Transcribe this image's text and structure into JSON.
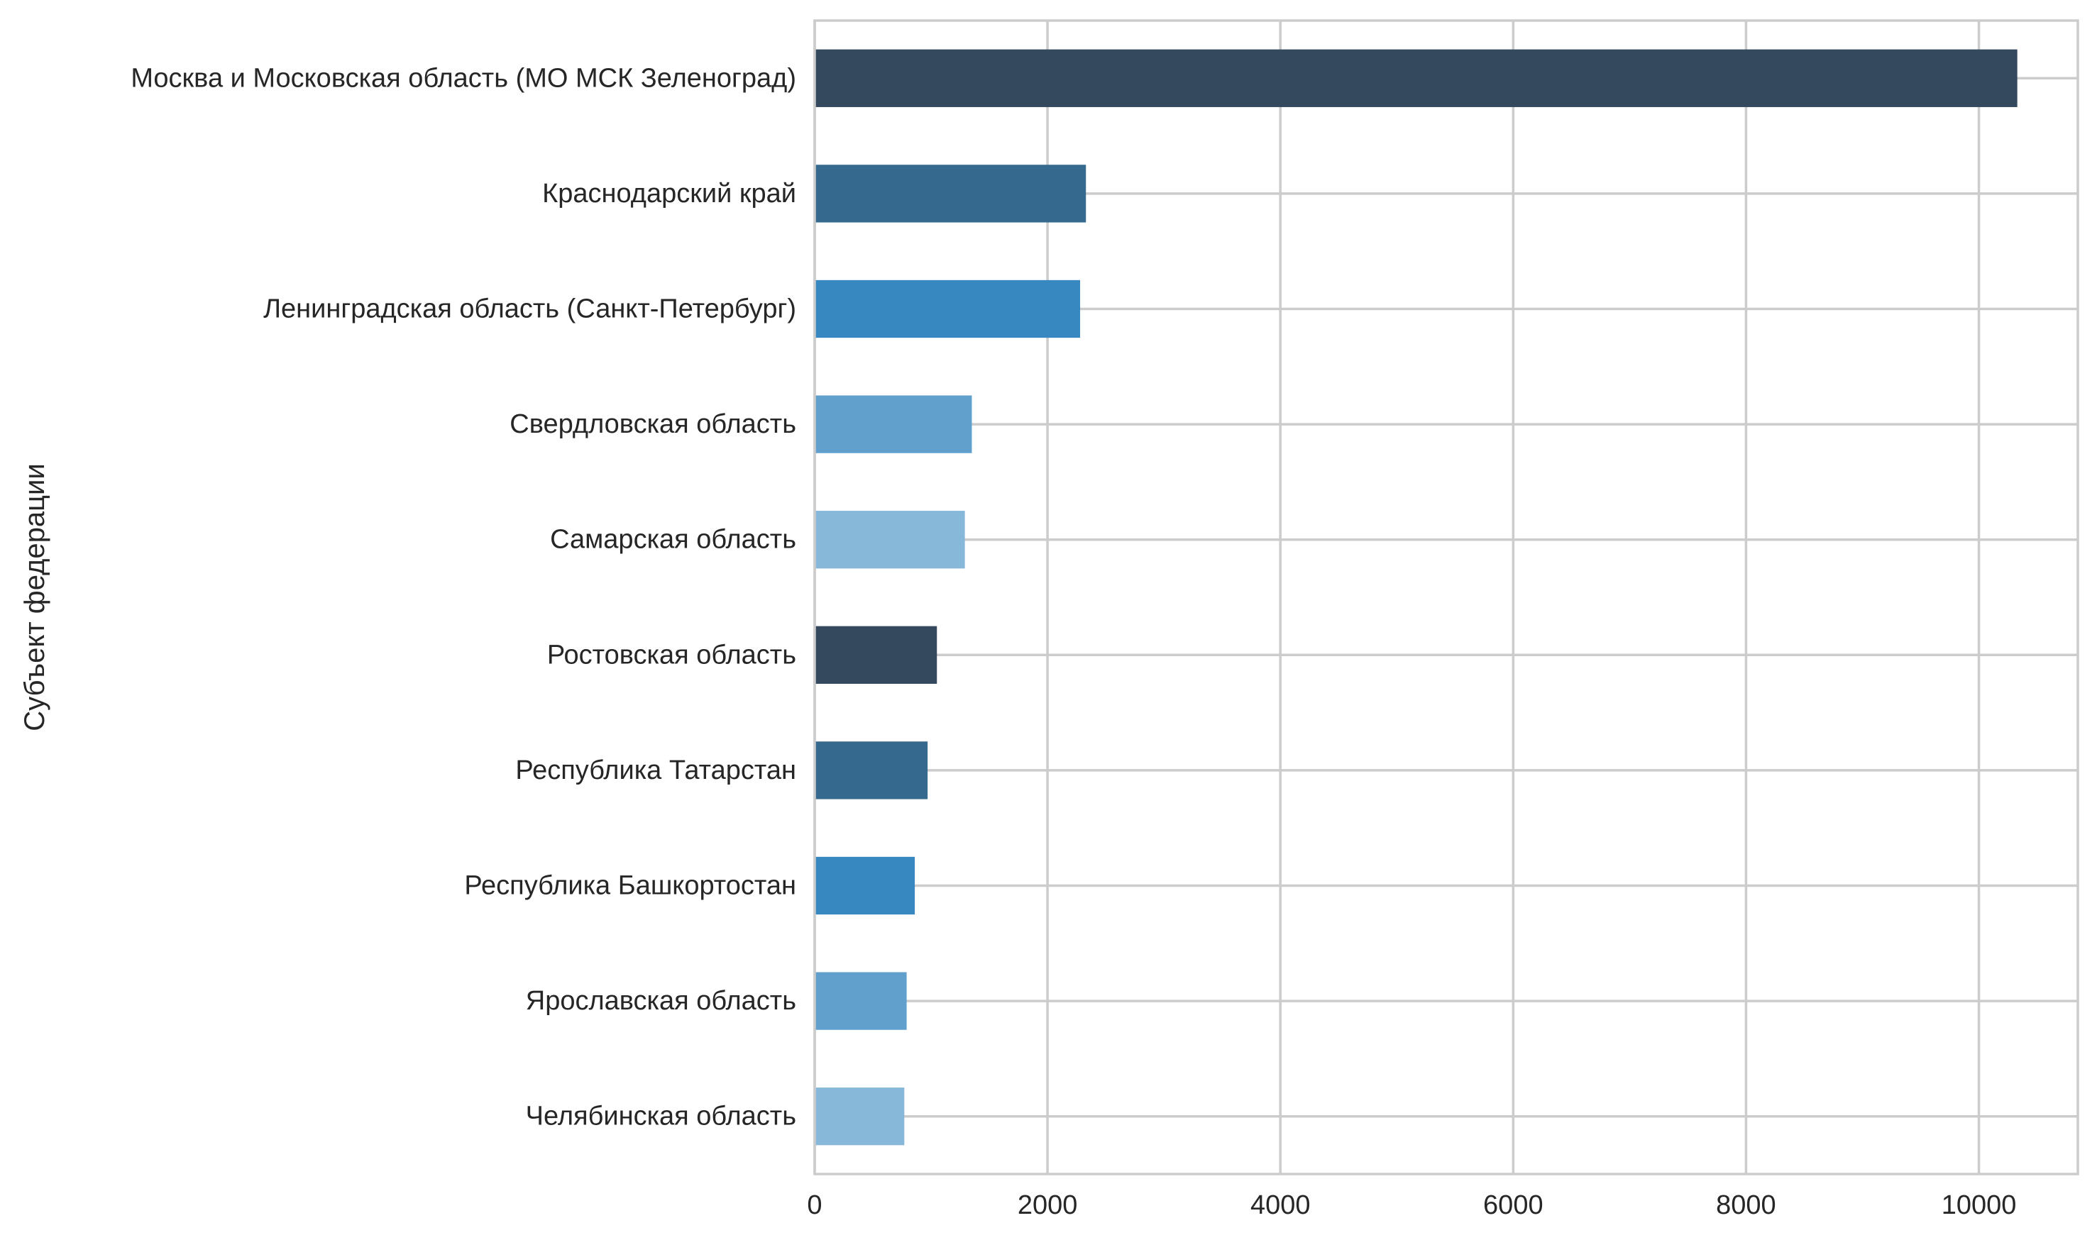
{
  "chart_data": {
    "type": "bar",
    "orientation": "horizontal",
    "ylabel": "Субъект федерации",
    "xlabel": "",
    "xlim": [
      0,
      10850
    ],
    "xticks": [
      0,
      2000,
      4000,
      6000,
      8000,
      10000
    ],
    "grid": true,
    "categories": [
      "Москва и Московская область (МО МСК Зеленоград)",
      "Краснодарский край",
      "Ленинградская область (Санкт-Петербург)",
      "Свердловская область",
      "Самарская область",
      "Ростовская область",
      "Республика Татарстан",
      "Республика Башкортостан",
      "Ярославская область",
      "Челябинская область"
    ],
    "values": [
      10330,
      2330,
      2280,
      1350,
      1290,
      1050,
      970,
      860,
      790,
      770
    ],
    "colors": [
      "#34495e",
      "#356a8e",
      "#3787c0",
      "#61a0cd",
      "#88b8d9",
      "#34495e",
      "#356a8e",
      "#3787c0",
      "#61a0cd",
      "#88b8d9"
    ]
  }
}
